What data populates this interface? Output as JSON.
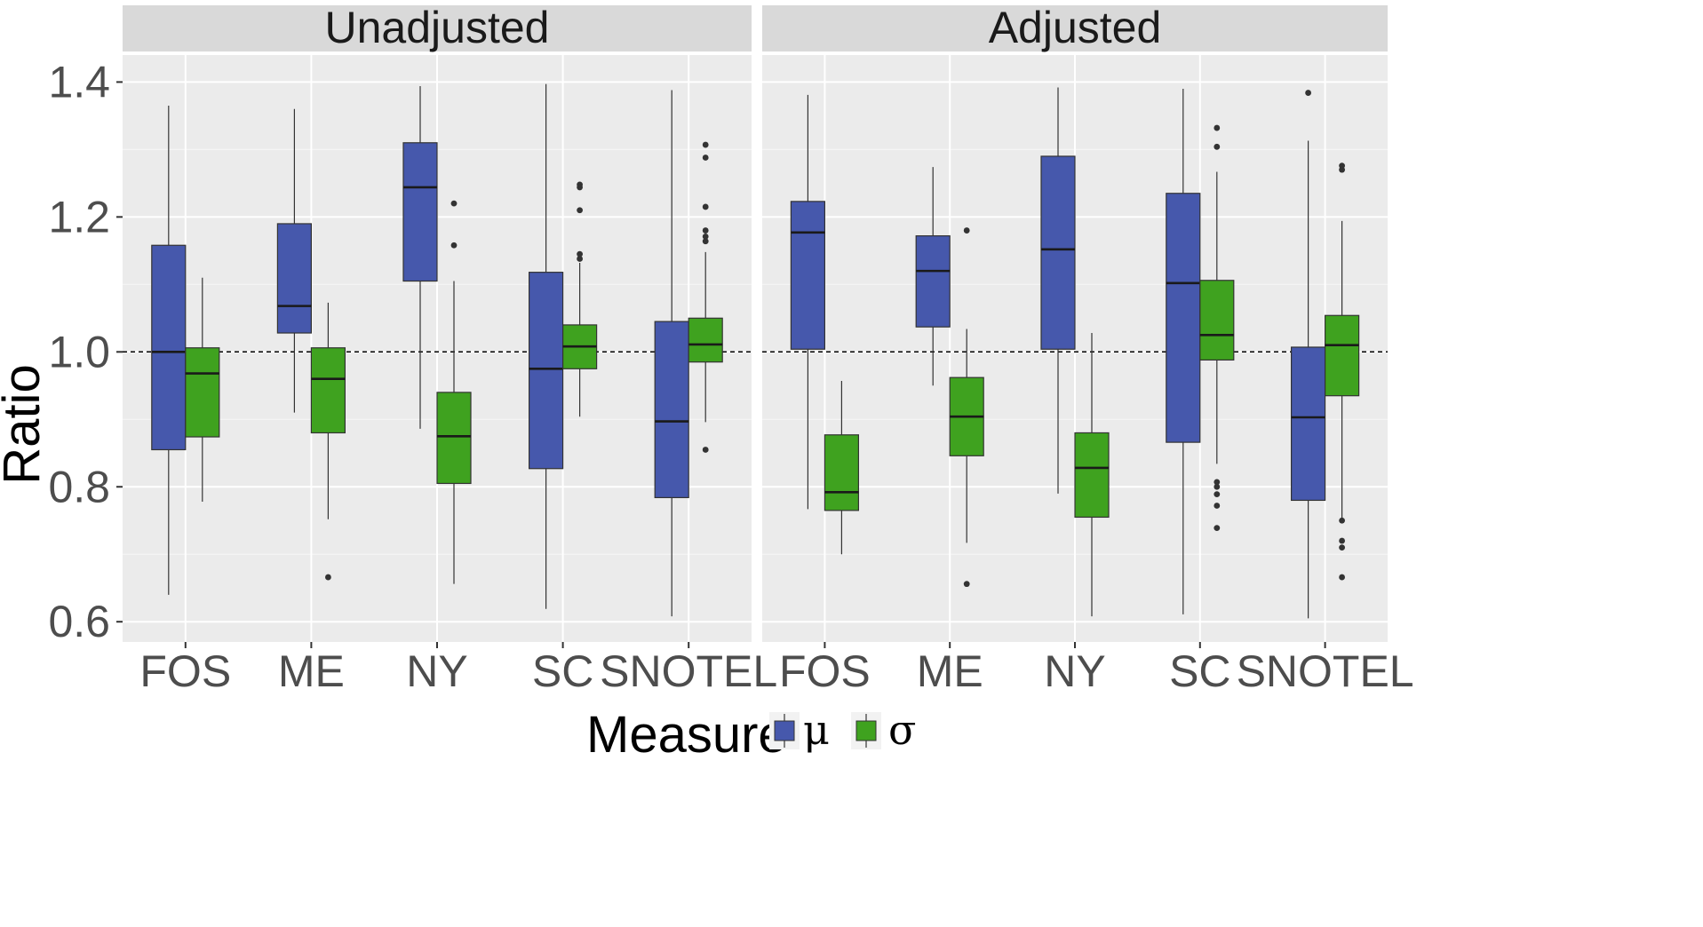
{
  "chart_data": {
    "type": "boxplot",
    "ylabel": "Ratio",
    "ylim": [
      0.57,
      1.44
    ],
    "yticks": [
      "0.6",
      "0.8",
      "1.0",
      "1.2",
      "1.4"
    ],
    "reference_line": 1.0,
    "categories": [
      "FOS",
      "ME",
      "NY",
      "SC",
      "SNOTEL"
    ],
    "legend": {
      "title": "Measure",
      "placement": "bottom",
      "entries": [
        {
          "key": "mu",
          "label": "μ",
          "color": "#4658AC"
        },
        {
          "key": "sigma",
          "label": "σ",
          "color": "#3FA21F"
        }
      ]
    },
    "panels": [
      {
        "title": "Unadjusted",
        "boxes": {
          "FOS": {
            "mu": {
              "min": 0.64,
              "q1": 0.855,
              "median": 1.0,
              "q3": 1.158,
              "max": 1.365,
              "outliers": []
            },
            "sigma": {
              "min": 0.778,
              "q1": 0.874,
              "median": 0.968,
              "q3": 1.006,
              "max": 1.11,
              "outliers": []
            }
          },
          "ME": {
            "mu": {
              "min": 0.91,
              "q1": 1.028,
              "median": 1.068,
              "q3": 1.19,
              "max": 1.36,
              "outliers": []
            },
            "sigma": {
              "min": 0.752,
              "q1": 0.88,
              "median": 0.96,
              "q3": 1.006,
              "max": 1.073,
              "outliers": [
                0.666
              ]
            }
          },
          "NY": {
            "mu": {
              "min": 0.886,
              "q1": 1.105,
              "median": 1.244,
              "q3": 1.31,
              "max": 1.394,
              "outliers": []
            },
            "sigma": {
              "min": 0.656,
              "q1": 0.805,
              "median": 0.875,
              "q3": 0.94,
              "max": 1.105,
              "outliers": [
                1.158,
                1.22
              ]
            }
          },
          "SC": {
            "mu": {
              "min": 0.619,
              "q1": 0.827,
              "median": 0.975,
              "q3": 1.118,
              "max": 1.397,
              "outliers": []
            },
            "sigma": {
              "min": 0.904,
              "q1": 0.975,
              "median": 1.008,
              "q3": 1.04,
              "max": 1.132,
              "outliers": [
                1.138,
                1.145,
                1.21,
                1.244,
                1.248
              ]
            }
          },
          "SNOTEL": {
            "mu": {
              "min": 0.608,
              "q1": 0.784,
              "median": 0.897,
              "q3": 1.045,
              "max": 1.388,
              "outliers": []
            },
            "sigma": {
              "min": 0.896,
              "q1": 0.985,
              "median": 1.011,
              "q3": 1.05,
              "max": 1.148,
              "outliers": [
                0.855,
                1.164,
                1.171,
                1.18,
                1.215,
                1.288,
                1.307
              ]
            }
          }
        }
      },
      {
        "title": "Adjusted",
        "boxes": {
          "FOS": {
            "mu": {
              "min": 0.767,
              "q1": 1.004,
              "median": 1.177,
              "q3": 1.223,
              "max": 1.381,
              "outliers": []
            },
            "sigma": {
              "min": 0.7,
              "q1": 0.765,
              "median": 0.792,
              "q3": 0.877,
              "max": 0.957,
              "outliers": []
            }
          },
          "ME": {
            "mu": {
              "min": 0.95,
              "q1": 1.037,
              "median": 1.12,
              "q3": 1.172,
              "max": 1.274,
              "outliers": []
            },
            "sigma": {
              "min": 0.717,
              "q1": 0.846,
              "median": 0.904,
              "q3": 0.962,
              "max": 1.034,
              "outliers": [
                0.656,
                1.18
              ]
            }
          },
          "NY": {
            "mu": {
              "min": 0.79,
              "q1": 1.004,
              "median": 1.152,
              "q3": 1.29,
              "max": 1.392,
              "outliers": []
            },
            "sigma": {
              "min": 0.608,
              "q1": 0.755,
              "median": 0.828,
              "q3": 0.88,
              "max": 1.028,
              "outliers": []
            }
          },
          "SC": {
            "mu": {
              "min": 0.611,
              "q1": 0.866,
              "median": 1.102,
              "q3": 1.235,
              "max": 1.39,
              "outliers": []
            },
            "sigma": {
              "min": 0.834,
              "q1": 0.988,
              "median": 1.025,
              "q3": 1.106,
              "max": 1.267,
              "outliers": [
                0.739,
                0.772,
                0.789,
                0.8,
                0.807,
                1.304,
                1.332
              ]
            }
          },
          "SNOTEL": {
            "mu": {
              "min": 0.605,
              "q1": 0.78,
              "median": 0.903,
              "q3": 1.007,
              "max": 1.313,
              "outliers": [
                1.384
              ]
            },
            "sigma": {
              "min": 0.752,
              "q1": 0.935,
              "median": 1.01,
              "q3": 1.054,
              "max": 1.194,
              "outliers": [
                0.666,
                0.71,
                0.72,
                0.75,
                1.27,
                1.276
              ]
            }
          }
        }
      }
    ]
  }
}
